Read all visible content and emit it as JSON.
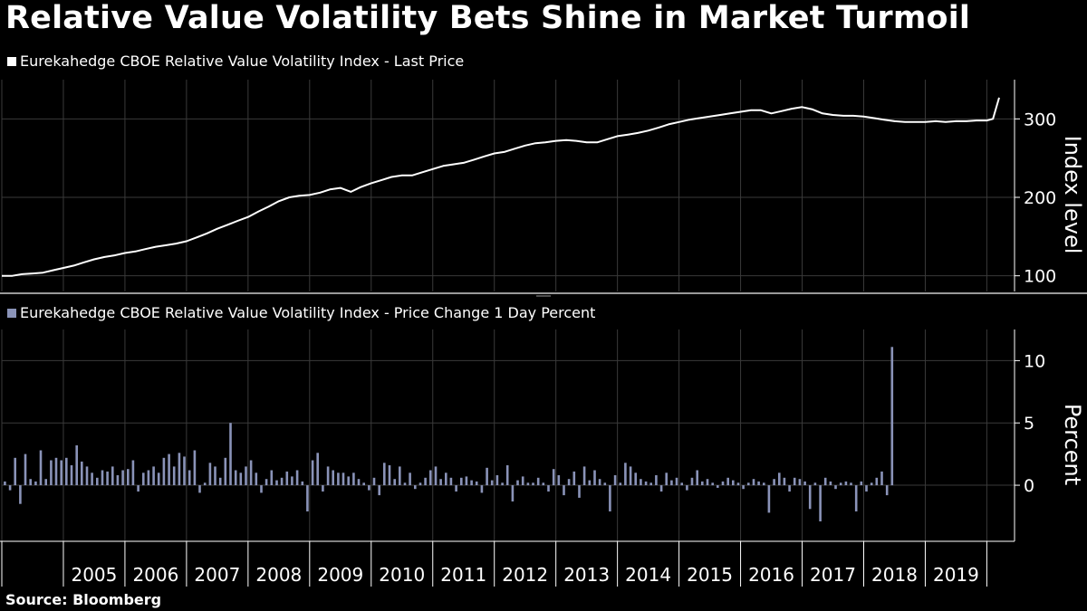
{
  "title": "Relative Value Volatility Bets Shine in Market Turmoil",
  "source": "Source: Bloomberg",
  "colors": {
    "background": "#000000",
    "line": "#ffffff",
    "bar": "#8a93b8",
    "grid": "#3a3a3a"
  },
  "chart_data": [
    {
      "type": "line",
      "legend": "Eurekahedge CBOE Relative Value Volatility Index - Last Price",
      "ylabel": "Index level",
      "yticks": [
        100,
        200,
        300
      ],
      "ylim": [
        80,
        350
      ],
      "xlim": [
        2004.0,
        2020.45
      ],
      "grid": true,
      "x": [
        2004.0,
        2004.17,
        2004.33,
        2004.5,
        2004.67,
        2004.83,
        2005.0,
        2005.17,
        2005.33,
        2005.5,
        2005.67,
        2005.83,
        2006.0,
        2006.17,
        2006.33,
        2006.5,
        2006.67,
        2006.83,
        2007.0,
        2007.17,
        2007.33,
        2007.5,
        2007.67,
        2007.83,
        2008.0,
        2008.17,
        2008.33,
        2008.5,
        2008.67,
        2008.83,
        2009.0,
        2009.17,
        2009.33,
        2009.5,
        2009.67,
        2009.83,
        2010.0,
        2010.17,
        2010.33,
        2010.5,
        2010.67,
        2010.83,
        2011.0,
        2011.17,
        2011.33,
        2011.5,
        2011.67,
        2011.83,
        2012.0,
        2012.17,
        2012.33,
        2012.5,
        2012.67,
        2012.83,
        2013.0,
        2013.17,
        2013.33,
        2013.5,
        2013.67,
        2013.83,
        2014.0,
        2014.17,
        2014.33,
        2014.5,
        2014.67,
        2014.83,
        2015.0,
        2015.17,
        2015.33,
        2015.5,
        2015.67,
        2015.83,
        2016.0,
        2016.17,
        2016.33,
        2016.5,
        2016.67,
        2016.83,
        2017.0,
        2017.17,
        2017.33,
        2017.5,
        2017.67,
        2017.83,
        2018.0,
        2018.17,
        2018.33,
        2018.5,
        2018.67,
        2018.83,
        2019.0,
        2019.17,
        2019.33,
        2019.5,
        2019.67,
        2019.83,
        2020.0,
        2020.1,
        2020.2
      ],
      "values": [
        100,
        100,
        102,
        103,
        104,
        107,
        110,
        113,
        117,
        121,
        124,
        126,
        129,
        131,
        134,
        137,
        139,
        141,
        144,
        149,
        154,
        160,
        165,
        170,
        175,
        182,
        188,
        195,
        200,
        202,
        203,
        206,
        210,
        212,
        207,
        213,
        218,
        222,
        226,
        228,
        228,
        232,
        236,
        240,
        242,
        244,
        248,
        252,
        256,
        258,
        262,
        266,
        269,
        270,
        272,
        273,
        272,
        270,
        270,
        274,
        278,
        280,
        282,
        285,
        289,
        293,
        296,
        299,
        301,
        303,
        305,
        307,
        309,
        311,
        311,
        307,
        310,
        313,
        315,
        312,
        307,
        305,
        304,
        304,
        303,
        301,
        299,
        297,
        296,
        296,
        296,
        297,
        296,
        297,
        297,
        298,
        298,
        300,
        327
      ]
    },
    {
      "type": "bar",
      "legend": "Eurekahedge CBOE Relative Value Volatility Index - Price Change 1 Day Percent",
      "ylabel": "Percent",
      "yticks": [
        0,
        5,
        10
      ],
      "ylim": [
        -4.5,
        12.5
      ],
      "xlim": [
        2004.0,
        2020.45
      ],
      "grid": true,
      "x_start": 2004.05,
      "x_step": 0.0833,
      "values": [
        0.3,
        -0.4,
        2.2,
        -1.5,
        2.5,
        0.5,
        0.3,
        2.8,
        0.5,
        2.0,
        2.2,
        2.0,
        2.2,
        1.6,
        3.2,
        1.9,
        1.5,
        1.0,
        0.6,
        1.2,
        1.1,
        1.5,
        0.8,
        1.2,
        1.3,
        2.0,
        -0.5,
        1.0,
        1.2,
        1.5,
        1.0,
        2.2,
        2.5,
        1.5,
        2.6,
        2.3,
        1.2,
        2.8,
        -0.6,
        0.2,
        1.8,
        1.5,
        0.6,
        2.2,
        5.0,
        1.2,
        1.0,
        1.5,
        2.0,
        1.0,
        -0.6,
        0.5,
        1.2,
        0.4,
        0.6,
        1.1,
        0.7,
        1.2,
        0.3,
        -2.1,
        2.0,
        2.6,
        -0.5,
        1.5,
        1.2,
        1.0,
        1.0,
        0.7,
        1.0,
        0.5,
        0.2,
        -0.4,
        0.6,
        -0.8,
        1.8,
        1.6,
        0.5,
        1.5,
        0.2,
        1.0,
        -0.3,
        0.2,
        0.6,
        1.2,
        1.5,
        0.5,
        1.0,
        0.6,
        -0.5,
        0.6,
        0.7,
        0.4,
        0.3,
        -0.6,
        1.4,
        0.4,
        0.8,
        0.2,
        1.6,
        -1.3,
        0.4,
        0.7,
        0.2,
        0.2,
        0.6,
        0.2,
        -0.5,
        1.3,
        0.8,
        -0.8,
        0.5,
        1.1,
        -1.0,
        1.5,
        0.4,
        1.2,
        0.5,
        0.2,
        -2.1,
        0.8,
        0.2,
        1.8,
        1.5,
        1.0,
        0.5,
        0.3,
        0.2,
        0.8,
        -0.5,
        1.0,
        0.4,
        0.6,
        0.2,
        -0.4,
        0.6,
        1.2,
        0.3,
        0.5,
        0.2,
        -0.2,
        0.3,
        0.6,
        0.4,
        0.2,
        -0.3,
        0.2,
        0.5,
        0.3,
        0.2,
        -2.2,
        0.5,
        1.0,
        0.6,
        -0.5,
        0.6,
        0.5,
        0.3,
        -1.9,
        0.2,
        -2.9,
        0.6,
        0.3,
        -0.3,
        0.2,
        0.3,
        0.2,
        -2.1,
        0.3,
        -0.5,
        0.2,
        0.6,
        1.1,
        -0.8,
        11.1
      ]
    }
  ],
  "x_axis_labels": [
    "2005",
    "2006",
    "2007",
    "2008",
    "2009",
    "2010",
    "2011",
    "2012",
    "2013",
    "2014",
    "2015",
    "2016",
    "2017",
    "2018",
    "2019"
  ]
}
